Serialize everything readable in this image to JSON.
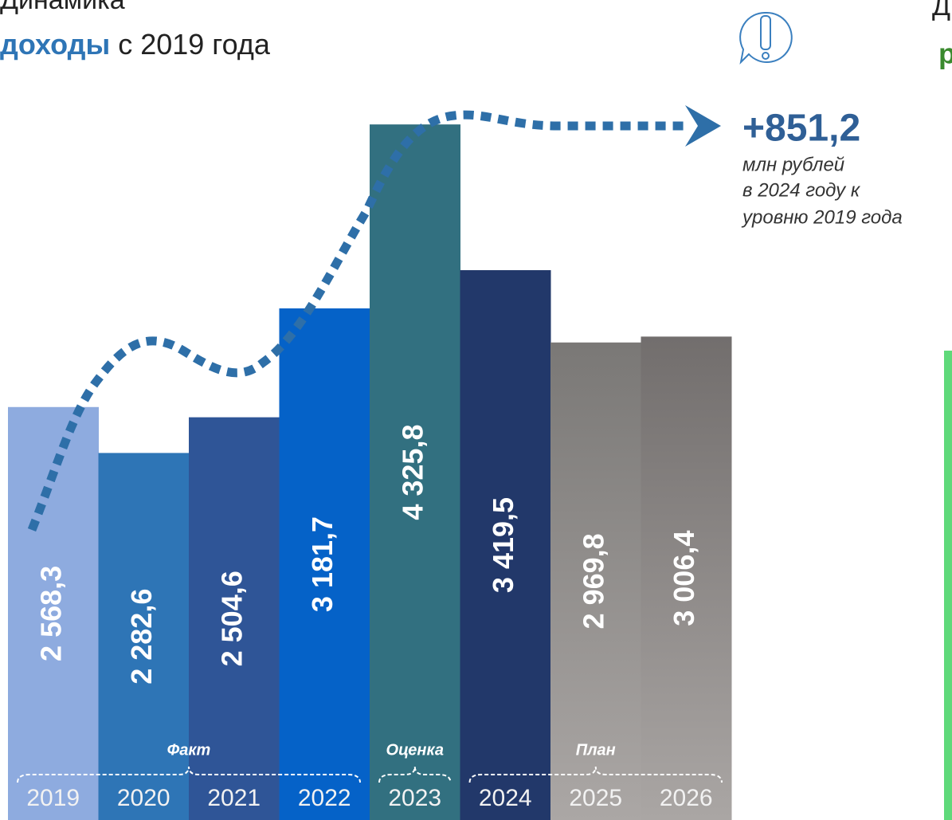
{
  "chart_data": {
    "type": "bar",
    "title": "Динамика",
    "title_highlight": "доходы",
    "title_rest": "с 2019 года",
    "right_fragment_1": "Д",
    "right_fragment_2": "р",
    "annotation_value": "+851,2",
    "annotation_lines": [
      "млн рублей",
      "в 2024 году к",
      "уровню 2019 года"
    ],
    "categories": [
      "2019",
      "2020",
      "2021",
      "2022",
      "2023",
      "2024",
      "2025",
      "2026"
    ],
    "values": [
      2568.3,
      2282.6,
      2504.6,
      3181.7,
      4325.8,
      3419.5,
      2969.8,
      3006.4
    ],
    "value_labels": [
      "2 568,3",
      "2 282,6",
      "2 504,6",
      "3 181,7",
      "4 325,8",
      "3 419,5",
      "2 969,8",
      "3 006,4"
    ],
    "colors": [
      "#8eabdf",
      "#2e75b6",
      "#2f5597",
      "#0562c8",
      "#327080",
      "#22386a",
      "url(#g25)",
      "url(#g26)"
    ],
    "groups": [
      {
        "label": "Факт",
        "from": 0,
        "to": 3
      },
      {
        "label": "Оценка",
        "from": 4,
        "to": 4
      },
      {
        "label": "План",
        "from": 5,
        "to": 7
      }
    ],
    "ylim": [
      0,
      4500
    ]
  }
}
